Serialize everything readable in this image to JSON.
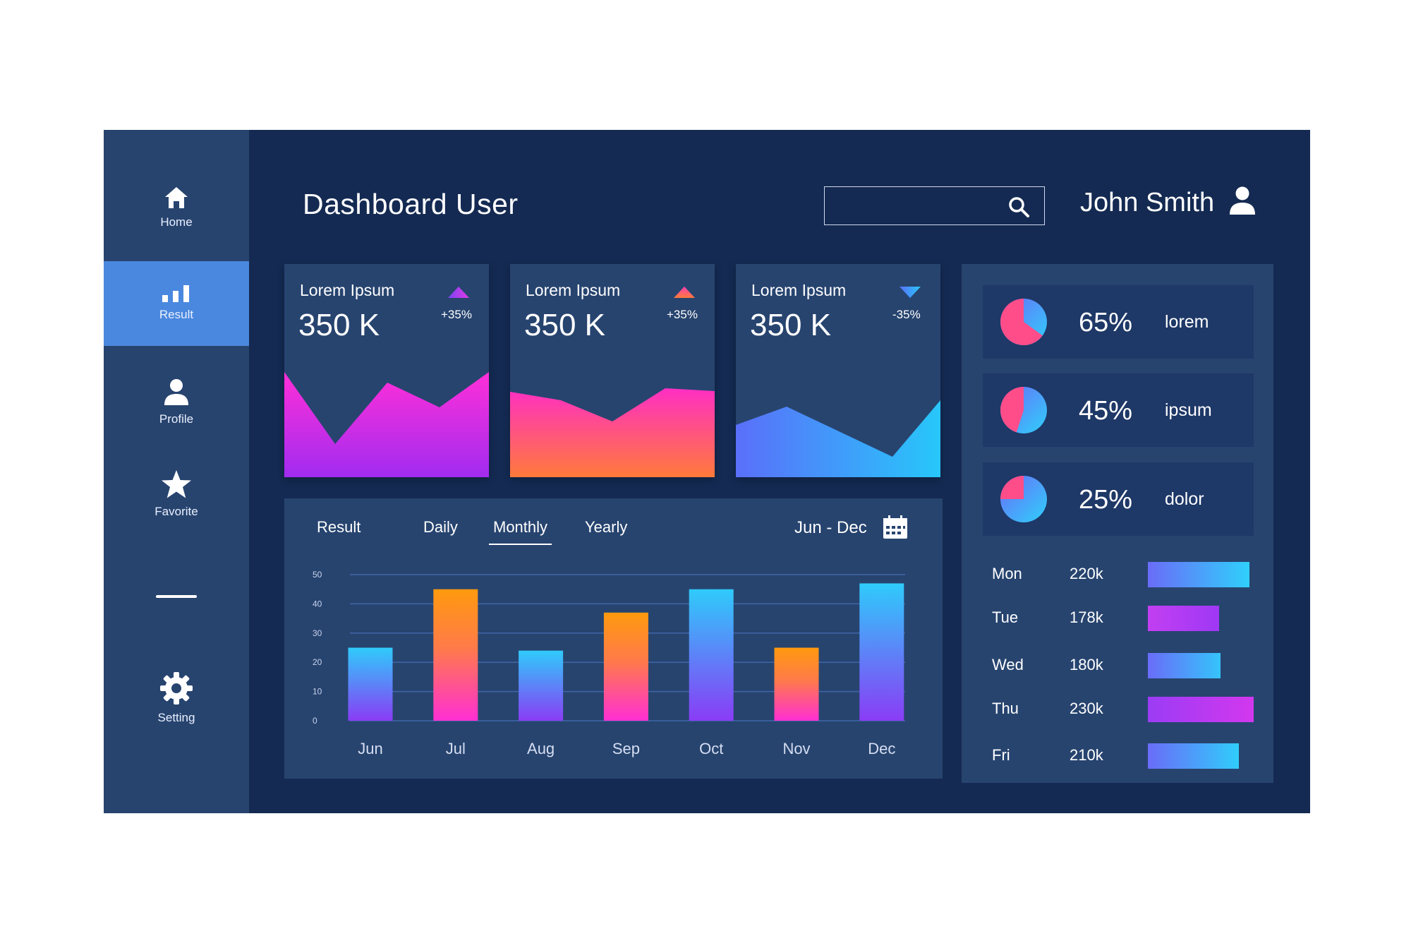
{
  "sidebar": {
    "items": [
      {
        "label": "Home",
        "icon": "home-icon"
      },
      {
        "label": "Result",
        "icon": "bar-chart-icon",
        "active": true
      },
      {
        "label": "Profile",
        "icon": "user-icon"
      },
      {
        "label": "Favorite",
        "icon": "star-icon"
      },
      {
        "label": "Setting",
        "icon": "gear-icon"
      }
    ]
  },
  "header": {
    "title": "Dashboard User",
    "search_placeholder": "",
    "user_name": "John Smith"
  },
  "cards": [
    {
      "title": "Lorem Ipsum",
      "value": "350 K",
      "delta": "+35%",
      "trend": "up",
      "colors": [
        "#ff2fd8",
        "#a12cf0"
      ]
    },
    {
      "title": "Lorem Ipsum",
      "value": "350 K",
      "delta": "+35%",
      "trend": "up",
      "colors": [
        "#ff3fb7",
        "#ff7a3a"
      ]
    },
    {
      "title": "Lorem Ipsum",
      "value": "350 K",
      "delta": "-35%",
      "trend": "down",
      "colors": [
        "#4f7dfb",
        "#27c7fa"
      ]
    }
  ],
  "result_panel": {
    "label": "Result",
    "tabs": [
      "Daily",
      "Monthly",
      "Yearly"
    ],
    "active_tab": "Monthly",
    "range": "Jun - Dec"
  },
  "chart_data": {
    "type": "bar",
    "categories": [
      "Jun",
      "Jul",
      "Aug",
      "Sep",
      "Oct",
      "Nov",
      "Dec"
    ],
    "values": [
      25,
      45,
      24,
      37,
      45,
      25,
      47
    ],
    "yticks": [
      0,
      10,
      20,
      30,
      40,
      50
    ],
    "ylim": [
      0,
      50
    ],
    "bar_styles": [
      "cool",
      "warm",
      "cool",
      "warm",
      "cool",
      "warm",
      "cool"
    ],
    "grid": true
  },
  "stats": [
    {
      "pct": "65%",
      "label": "lorem",
      "fraction": 0.65
    },
    {
      "pct": "45%",
      "label": "ipsum",
      "fraction": 0.45
    },
    {
      "pct": "25%",
      "label": "dolor",
      "fraction": 0.25
    }
  ],
  "days": [
    {
      "day": "Mon",
      "value": "220k",
      "fill": 0.96,
      "colors": [
        "#6a6cf8",
        "#2fd0fb"
      ]
    },
    {
      "day": "Tue",
      "value": "178k",
      "fill": 0.67,
      "colors": [
        "#c23ff2",
        "#9f38f5"
      ]
    },
    {
      "day": "Wed",
      "value": "180k",
      "fill": 0.69,
      "colors": [
        "#6a6cf8",
        "#35c4fb"
      ]
    },
    {
      "day": "Thu",
      "value": "230k",
      "fill": 1.0,
      "colors": [
        "#9b3cf5",
        "#d238ee"
      ]
    },
    {
      "day": "Fri",
      "value": "210k",
      "fill": 0.86,
      "colors": [
        "#6a6cf8",
        "#30cdfb"
      ]
    }
  ]
}
